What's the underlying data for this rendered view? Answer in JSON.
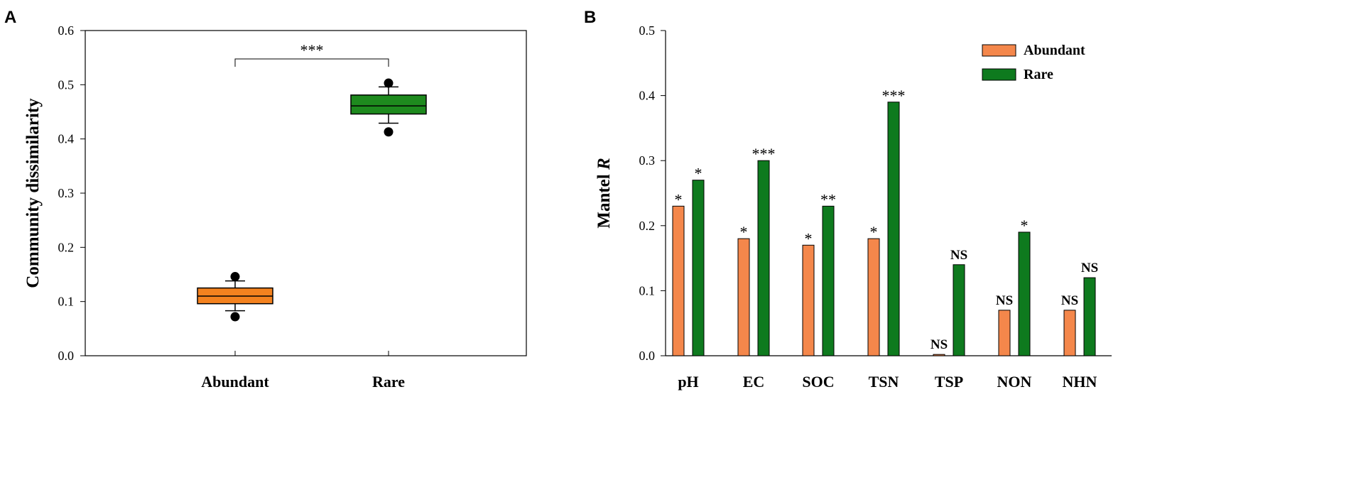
{
  "chart_data": [
    {
      "panel": "A",
      "type": "box",
      "ylabel": "Community dissimilarity",
      "ylim": [
        0,
        0.6
      ],
      "yticks": [
        "0.0",
        "0.1",
        "0.2",
        "0.3",
        "0.4",
        "0.5",
        "0.6"
      ],
      "categories": [
        "Abundant",
        "Rare"
      ],
      "boxes": [
        {
          "name": "Abundant",
          "color": "#F4821F",
          "q1": 0.096,
          "median": 0.11,
          "q3": 0.125,
          "whisker_low": 0.083,
          "whisker_high": 0.138,
          "outliers": [
            0.146,
            0.072
          ]
        },
        {
          "name": "Rare",
          "color": "#1E8A1E",
          "q1": 0.446,
          "median": 0.461,
          "q3": 0.481,
          "whisker_low": 0.429,
          "whisker_high": 0.496,
          "outliers": [
            0.503,
            0.413
          ]
        }
      ],
      "bracket_label": "***"
    },
    {
      "panel": "B",
      "type": "bar",
      "ylabel_prefix": "Mantel ",
      "ylabel_italic": "R",
      "ylim": [
        0,
        0.5
      ],
      "yticks": [
        "0.0",
        "0.1",
        "0.2",
        "0.3",
        "0.4",
        "0.5"
      ],
      "categories": [
        "pH",
        "EC",
        "SOC",
        "TSN",
        "TSP",
        "NON",
        "NHN"
      ],
      "series": [
        {
          "name": "Abundant",
          "color": "#F4874B",
          "values": [
            0.23,
            0.18,
            0.17,
            0.18,
            0.002,
            0.07,
            0.07
          ],
          "labels": [
            "*",
            "*",
            "*",
            "*",
            "NS",
            "NS",
            "NS"
          ]
        },
        {
          "name": "Rare",
          "color": "#0E7A1E",
          "values": [
            0.27,
            0.3,
            0.23,
            0.39,
            0.14,
            0.19,
            0.12
          ],
          "labels": [
            "*",
            "***",
            "**",
            "***",
            "NS",
            "*",
            "NS"
          ]
        }
      ]
    }
  ]
}
